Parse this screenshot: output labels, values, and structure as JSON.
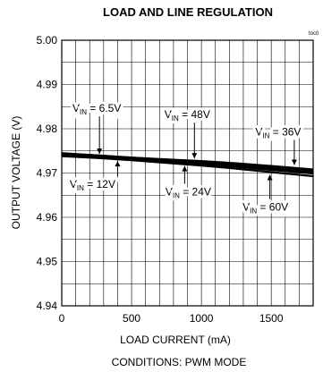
{
  "chart_data": {
    "type": "line",
    "title": "LOAD AND LINE REGULATION",
    "corner_tag": "toc0",
    "xlabel": "LOAD CURRENT (mA)",
    "ylabel": "OUTPUT VOLTAGE (V)",
    "conditions": "CONDITIONS: PWM MODE",
    "xlim": [
      0,
      1800
    ],
    "ylim": [
      4.94,
      5.0
    ],
    "x_ticks": [
      0,
      500,
      1000,
      1500
    ],
    "x_tick_labels": [
      "0",
      "500",
      "1000",
      "1500"
    ],
    "y_ticks": [
      4.94,
      4.95,
      4.96,
      4.97,
      4.98,
      4.99,
      5.0
    ],
    "y_tick_labels": [
      "4.94",
      "4.95",
      "4.96",
      "4.97",
      "4.98",
      "4.99",
      "5.00"
    ],
    "grid": true,
    "series": [
      {
        "name": "VIN = 6.5V",
        "x": [
          0,
          250,
          500,
          750,
          1000,
          1250,
          1500,
          1800
        ],
        "values": [
          4.9745,
          4.974,
          4.9735,
          4.9731,
          4.9727,
          4.9722,
          4.9716,
          4.9708
        ]
      },
      {
        "name": "VIN = 12V",
        "x": [
          0,
          250,
          500,
          750,
          1000,
          1250,
          1500,
          1800
        ],
        "values": [
          4.9742,
          4.9738,
          4.9733,
          4.9728,
          4.9723,
          4.9717,
          4.9711,
          4.9703
        ]
      },
      {
        "name": "VIN = 24V",
        "x": [
          0,
          250,
          500,
          750,
          1000,
          1250,
          1500,
          1800
        ],
        "values": [
          4.974,
          4.9736,
          4.9731,
          4.9726,
          4.972,
          4.9714,
          4.9707,
          4.9699
        ]
      },
      {
        "name": "VIN = 36V",
        "x": [
          0,
          250,
          500,
          750,
          1000,
          1250,
          1500,
          1800
        ],
        "values": [
          4.9743,
          4.9739,
          4.9734,
          4.9729,
          4.9724,
          4.9718,
          4.9712,
          4.9704
        ]
      },
      {
        "name": "VIN = 48V",
        "x": [
          0,
          250,
          500,
          750,
          1000,
          1250,
          1500,
          1800
        ],
        "values": [
          4.9744,
          4.974,
          4.9735,
          4.973,
          4.9726,
          4.972,
          4.9714,
          4.9706
        ]
      },
      {
        "name": "VIN = 60V",
        "x": [
          0,
          250,
          500,
          750,
          1000,
          1250,
          1500,
          1800
        ],
        "values": [
          4.9738,
          4.9734,
          4.9729,
          4.9723,
          4.9717,
          4.971,
          4.9702,
          4.9693
        ]
      }
    ],
    "annotations": [
      {
        "series": "VIN = 6.5V",
        "main": "V",
        "sub": "IN",
        "rest": " = 6.5V",
        "at_x": 270,
        "at_y": 4.9737
      },
      {
        "series": "VIN = 48V",
        "main": "V",
        "sub": "IN",
        "rest": " = 48V",
        "at_x": 950,
        "at_y": 4.9727
      },
      {
        "series": "VIN = 36V",
        "main": "V",
        "sub": "IN",
        "rest": " = 36V",
        "at_x": 1665,
        "at_y": 4.9712
      },
      {
        "series": "VIN = 12V",
        "main": "V",
        "sub": "IN",
        "rest": " = 12V",
        "at_x": 400,
        "at_y": 4.9733
      },
      {
        "series": "VIN = 24V",
        "main": "V",
        "sub": "IN",
        "rest": " = 24V",
        "at_x": 880,
        "at_y": 4.9722
      },
      {
        "series": "VIN = 60V",
        "main": "V",
        "sub": "IN",
        "rest": " = 60V",
        "at_x": 1490,
        "at_y": 4.9702
      }
    ]
  }
}
